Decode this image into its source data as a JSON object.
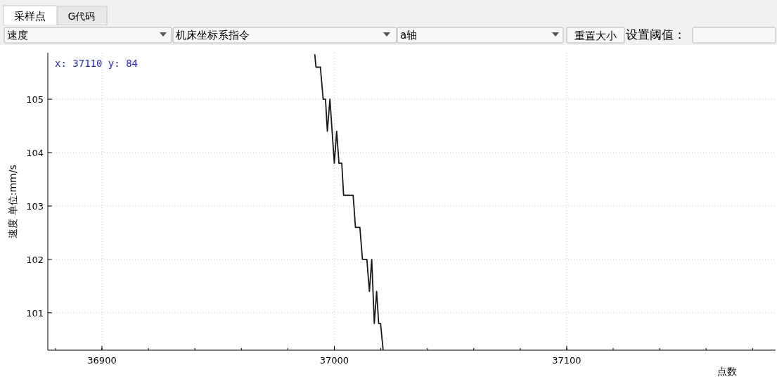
{
  "chart_data": {
    "type": "line",
    "xlabel": "点数",
    "ylabel": "速度 单位:mm/s",
    "annotations": [
      "采样点",
      "G代码",
      "速度",
      "机床坐标系指令",
      "a轴",
      "重置大小",
      "设置阈值：",
      "x: 37110 y: 84"
    ],
    "x": [
      36991.6,
      36992.1,
      36994,
      36995.2,
      36996.2,
      36997,
      36998.1,
      37000,
      37001,
      37002,
      37003.2,
      37004,
      37008.1,
      37009.1,
      37011,
      37012.1,
      37014,
      37015.1,
      37016.1,
      37017.2,
      37018.2,
      37019.1,
      37019.9,
      37021
    ],
    "series": [
      {
        "color": "#1a1a1a",
        "values": [
          105.84,
          105.6,
          105.6,
          105.0,
          105.0,
          104.4,
          105.0,
          103.8,
          104.4,
          103.8,
          103.8,
          103.2,
          103.2,
          102.6,
          102.6,
          102.0,
          102.0,
          101.4,
          102.0,
          100.8,
          101.4,
          100.8,
          100.8,
          100.3
        ]
      }
    ],
    "xlim": [
      36876.7,
      37189.9
    ],
    "ylim": [
      100.3,
      105.87
    ],
    "xticks": [
      36900,
      37000,
      37100
    ],
    "yticks": [
      101,
      102,
      103,
      104,
      105
    ],
    "grid": true,
    "marker": "none",
    "line_style": "solid"
  }
}
